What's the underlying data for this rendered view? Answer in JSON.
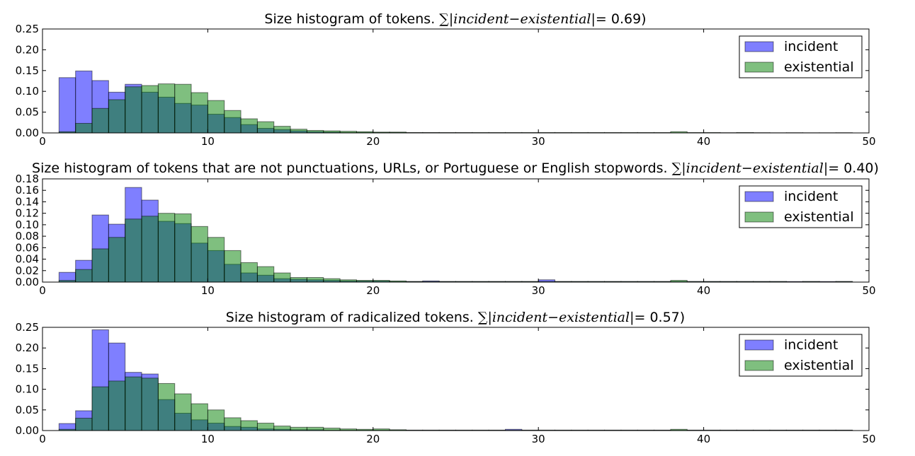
{
  "figure": {
    "legend_labels": [
      "incident",
      "existential"
    ],
    "colors": {
      "incident": "#7f7fff",
      "existential": "#7fbf7f",
      "overlap": "#3f7f7f",
      "edge": "#000000"
    }
  },
  "chart_data": [
    {
      "type": "bar",
      "title": "Size histogram of tokens. ",
      "title_math": "∑|incident−existential|",
      "title_value": "= 0.69)",
      "xlim": [
        0,
        50
      ],
      "ylim": [
        0,
        0.25
      ],
      "xticks": [
        "0",
        "10",
        "20",
        "30",
        "40",
        "50"
      ],
      "xtick_values": [
        0,
        10,
        20,
        30,
        40,
        50
      ],
      "yticks": [
        "0.00",
        "0.05",
        "0.10",
        "0.15",
        "0.20",
        "0.25"
      ],
      "ytick_values": [
        0,
        0.05,
        0.1,
        0.15,
        0.2,
        0.25
      ],
      "legend": "upper right",
      "bin_start": 1,
      "bin_width": 1,
      "series": [
        {
          "name": "incident",
          "values": [
            0.133,
            0.149,
            0.126,
            0.098,
            0.117,
            0.098,
            0.086,
            0.071,
            0.067,
            0.045,
            0.037,
            0.02,
            0.011,
            0.008,
            0.005,
            0.003,
            0.002,
            0.001,
            0.001,
            0.001,
            0.001,
            0.0005,
            0.0005,
            0.0003,
            0.0003,
            0.0002,
            0.0002,
            0.0002,
            0.0002,
            0.0002,
            0.0002,
            0.0002,
            0.0002,
            0.0002,
            0.0002,
            0.0002,
            0.0002,
            0.0002,
            0.0002,
            0.0002,
            0.0002,
            0.0002,
            0.0002,
            0.0001,
            0.0001,
            0.0001,
            0.0001,
            0.0001
          ]
        },
        {
          "name": "existential",
          "values": [
            0.003,
            0.023,
            0.059,
            0.08,
            0.111,
            0.114,
            0.118,
            0.117,
            0.097,
            0.078,
            0.054,
            0.034,
            0.027,
            0.016,
            0.009,
            0.006,
            0.005,
            0.004,
            0.003,
            0.002,
            0.002,
            0.001,
            0.001,
            0.001,
            0.001,
            0.001,
            0.001,
            0.001,
            0.001,
            0.001,
            0.001,
            0.001,
            0.001,
            0.001,
            0.001,
            0.001,
            0.001,
            0.003,
            0.001,
            0.001,
            0.0005,
            0.001,
            0.0005,
            0.0003,
            0.0005,
            0.0003,
            0.0003,
            0.0005
          ]
        }
      ]
    },
    {
      "type": "bar",
      "title": "Size histogram of tokens that are not punctuations, URLs, or Portuguese or English stopwords. ",
      "title_math": "∑|incident−existential|",
      "title_value": "= 0.40)",
      "xlim": [
        0,
        50
      ],
      "ylim": [
        0,
        0.18
      ],
      "xticks": [
        "0",
        "10",
        "20",
        "30",
        "40",
        "50"
      ],
      "xtick_values": [
        0,
        10,
        20,
        30,
        40,
        50
      ],
      "yticks": [
        "0.00",
        "0.02",
        "0.04",
        "0.06",
        "0.08",
        "0.10",
        "0.12",
        "0.14",
        "0.16",
        "0.18"
      ],
      "ytick_values": [
        0,
        0.02,
        0.04,
        0.06,
        0.08,
        0.1,
        0.12,
        0.14,
        0.16,
        0.18
      ],
      "legend": "upper right",
      "bin_start": 1,
      "bin_width": 1,
      "series": [
        {
          "name": "incident",
          "values": [
            0.017,
            0.038,
            0.117,
            0.101,
            0.165,
            0.143,
            0.106,
            0.102,
            0.068,
            0.055,
            0.031,
            0.016,
            0.012,
            0.006,
            0.005,
            0.004,
            0.003,
            0.002,
            0.002,
            0.002,
            0.001,
            0.001,
            0.002,
            0.001,
            0.001,
            0.001,
            0.001,
            0.001,
            0.001,
            0.004,
            0.001,
            0.001,
            0.001,
            0.001,
            0.001,
            0.001,
            0.001,
            0.001,
            0.001,
            0.001,
            0.001,
            0.001,
            0.001,
            0.001,
            0.001,
            0.001,
            0.001,
            0.001
          ]
        },
        {
          "name": "existential",
          "values": [
            0.003,
            0.022,
            0.058,
            0.078,
            0.11,
            0.115,
            0.12,
            0.119,
            0.097,
            0.078,
            0.055,
            0.034,
            0.027,
            0.016,
            0.008,
            0.008,
            0.006,
            0.004,
            0.003,
            0.003,
            0.002,
            0.001,
            0.001,
            0.001,
            0.001,
            0.001,
            0.001,
            0.001,
            0.001,
            0.001,
            0.001,
            0.001,
            0.001,
            0.001,
            0.001,
            0.001,
            0.001,
            0.003,
            0.001,
            0.001,
            0.001,
            0.001,
            0.001,
            0.001,
            0.0005,
            0.001,
            0.0005,
            0.001
          ]
        }
      ]
    },
    {
      "type": "bar",
      "title": "Size histogram of radicalized tokens. ",
      "title_math": "∑|incident−existential|",
      "title_value": "= 0.57)",
      "xlim": [
        0,
        50
      ],
      "ylim": [
        0,
        0.25
      ],
      "xticks": [
        "0",
        "10",
        "20",
        "30",
        "40",
        "50"
      ],
      "xtick_values": [
        0,
        10,
        20,
        30,
        40,
        50
      ],
      "yticks": [
        "0.00",
        "0.05",
        "0.10",
        "0.15",
        "0.20",
        "0.25"
      ],
      "ytick_values": [
        0,
        0.05,
        0.1,
        0.15,
        0.2,
        0.25
      ],
      "legend": "upper right",
      "bin_start": 1,
      "bin_width": 1,
      "series": [
        {
          "name": "incident",
          "values": [
            0.017,
            0.048,
            0.244,
            0.212,
            0.141,
            0.137,
            0.075,
            0.042,
            0.026,
            0.018,
            0.01,
            0.008,
            0.004,
            0.003,
            0.002,
            0.002,
            0.001,
            0.001,
            0.001,
            0.001,
            0.001,
            0.001,
            0.001,
            0.001,
            0.001,
            0.001,
            0.001,
            0.003,
            0.001,
            0.001,
            0.001,
            0.001,
            0.001,
            0.001,
            0.001,
            0.001,
            0.001,
            0.001,
            0.001,
            0.001,
            0.001,
            0.001,
            0.001,
            0.001,
            0.001,
            0.001,
            0.001,
            0.001
          ]
        },
        {
          "name": "existential",
          "values": [
            0.003,
            0.03,
            0.106,
            0.12,
            0.13,
            0.127,
            0.114,
            0.089,
            0.065,
            0.05,
            0.031,
            0.024,
            0.018,
            0.011,
            0.008,
            0.008,
            0.006,
            0.004,
            0.003,
            0.004,
            0.002,
            0.001,
            0.001,
            0.001,
            0.001,
            0.001,
            0.001,
            0.001,
            0.001,
            0.001,
            0.001,
            0.001,
            0.001,
            0.001,
            0.001,
            0.001,
            0.001,
            0.003,
            0.001,
            0.001,
            0.001,
            0.001,
            0.001,
            0.001,
            0.001,
            0.001,
            0.001,
            0.001
          ]
        }
      ]
    }
  ]
}
